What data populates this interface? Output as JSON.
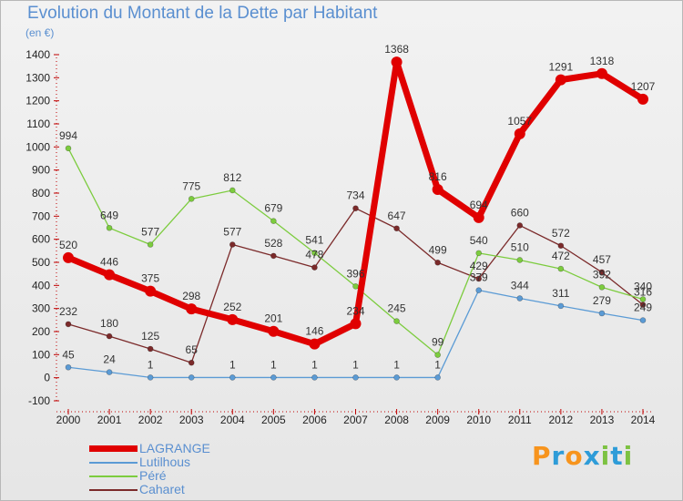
{
  "chart_data": {
    "type": "line",
    "title": "Evolution du Montant de la Dette par Habitant",
    "subtitle": "(en €)",
    "x": [
      "2000",
      "2001",
      "2002",
      "2003",
      "2004",
      "2005",
      "2006",
      "2007",
      "2008",
      "2009",
      "2010",
      "2011",
      "2012",
      "2013",
      "2014"
    ],
    "ylim": [
      -100,
      1400
    ],
    "yticks": [
      -100,
      0,
      100,
      200,
      300,
      400,
      500,
      600,
      700,
      800,
      900,
      1000,
      1100,
      1200,
      1300,
      1400
    ],
    "grid": false,
    "legend_position": "bottom-left",
    "series": [
      {
        "name": "LAGRANGE",
        "color": "#e00000",
        "values": [
          520,
          446,
          375,
          298,
          252,
          201,
          146,
          234,
          1368,
          816,
          694,
          1057,
          1291,
          1318,
          1207
        ],
        "labels": [
          "520",
          "446",
          "375",
          "298",
          "252",
          "201",
          "146",
          "234",
          "1368",
          "816",
          "694",
          "1057",
          "1291",
          "1318",
          "1207"
        ]
      },
      {
        "name": "Lutilhous",
        "color": "#5b9bd5",
        "values": [
          45,
          24,
          1,
          1,
          1,
          1,
          1,
          1,
          1,
          1,
          379,
          344,
          311,
          279,
          249
        ],
        "labels": [
          "45",
          "24",
          "1",
          "",
          "1",
          "1",
          "1",
          "1",
          "1",
          "1",
          "379",
          "344",
          "311",
          "279",
          "249"
        ]
      },
      {
        "name": "Péré",
        "color": "#7ccc3e",
        "values": [
          994,
          649,
          577,
          775,
          812,
          679,
          541,
          396,
          245,
          99,
          540,
          510,
          472,
          392,
          340
        ],
        "labels": [
          "994",
          "649",
          "577",
          "775",
          "812",
          "679",
          "541",
          "396",
          "245",
          "99",
          "540",
          "510",
          "472",
          "392",
          "340"
        ]
      },
      {
        "name": "Caharet",
        "color": "#7b2a2a",
        "values": [
          232,
          180,
          125,
          65,
          577,
          528,
          478,
          734,
          647,
          499,
          429,
          660,
          572,
          457,
          316
        ],
        "labels": [
          "232",
          "180",
          "125",
          "65",
          "577",
          "528",
          "478",
          "734",
          "647",
          "499",
          "429",
          "660",
          "572",
          "457",
          "316"
        ]
      }
    ]
  },
  "brand": {
    "text": "Proxiti",
    "colors": [
      "#f7941d",
      "#2e9cd8",
      "#f7941d",
      "#2e9cd8",
      "#7dc242",
      "#2e9cd8",
      "#7dc242"
    ]
  }
}
